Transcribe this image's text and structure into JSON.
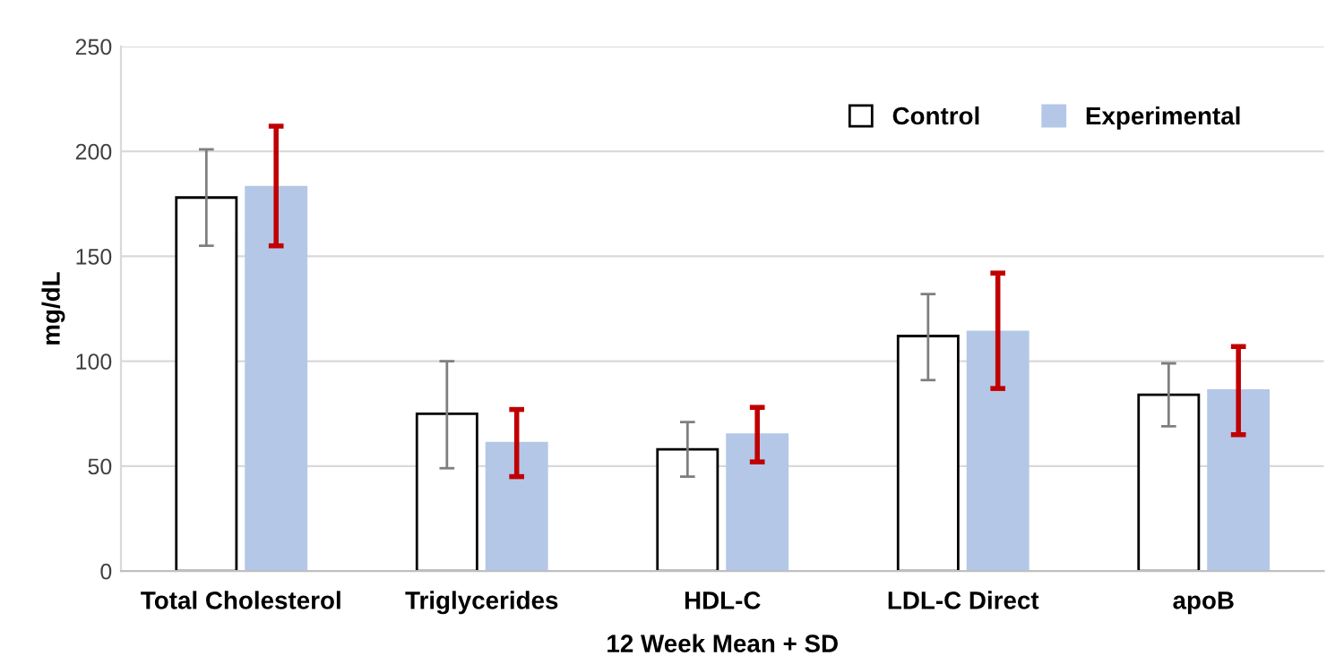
{
  "chart_data": {
    "type": "bar",
    "xlabel": "12 Week Mean + SD",
    "ylabel": "mg/dL",
    "categories": [
      "Total Cholesterol",
      "Triglycerides",
      "HDL-C",
      "LDL-C Direct",
      "apoB"
    ],
    "series": [
      {
        "name": "Control",
        "color": "#ffffff",
        "values": [
          178,
          75,
          58,
          112,
          84
        ],
        "errors": [
          [
            155,
            201
          ],
          [
            49,
            100
          ],
          [
            45,
            71
          ],
          [
            91,
            132
          ],
          [
            69,
            99
          ]
        ]
      },
      {
        "name": "Experimental",
        "color": "#b4c7e7",
        "values": [
          183,
          61,
          65,
          114,
          86
        ],
        "errors": [
          [
            155,
            212
          ],
          [
            45,
            77
          ],
          [
            52,
            78
          ],
          [
            87,
            142
          ],
          [
            65,
            107
          ]
        ]
      }
    ],
    "ylim": [
      0,
      250
    ],
    "yticks": [
      0,
      50,
      100,
      150,
      200,
      250
    ],
    "grid": "y",
    "legend": "top right"
  }
}
